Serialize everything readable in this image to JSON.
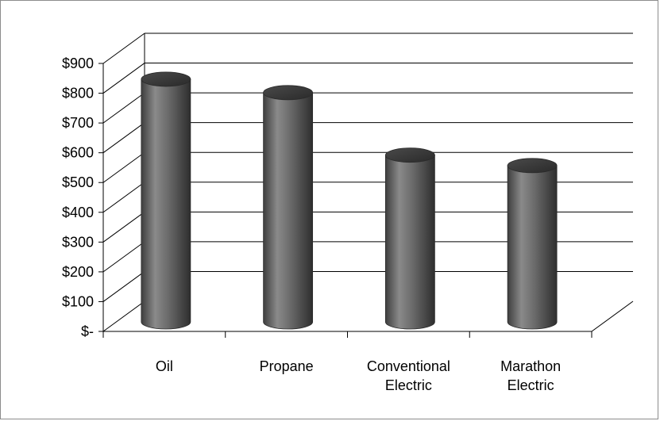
{
  "chart_data": {
    "type": "bar",
    "style": "3d-cylinder",
    "categories": [
      [
        "Oil"
      ],
      [
        "Propane"
      ],
      [
        "Conventional",
        "Electric"
      ],
      [
        "Marathon",
        "Electric"
      ]
    ],
    "values": [
      815,
      770,
      560,
      525
    ],
    "ylim": [
      0,
      900
    ],
    "yticks": [
      {
        "value": 0,
        "label": "$-"
      },
      {
        "value": 100,
        "label": "$100"
      },
      {
        "value": 200,
        "label": "$200"
      },
      {
        "value": 300,
        "label": "$300"
      },
      {
        "value": 400,
        "label": "$400"
      },
      {
        "value": 500,
        "label": "$500"
      },
      {
        "value": 600,
        "label": "$600"
      },
      {
        "value": 700,
        "label": "$700"
      },
      {
        "value": 800,
        "label": "$800"
      },
      {
        "value": 900,
        "label": "$900"
      }
    ],
    "grid": true,
    "legend": "none",
    "colors": {
      "bar": "#6f6f6f",
      "grid": "#000000",
      "frame": "#8c8c8c"
    }
  }
}
